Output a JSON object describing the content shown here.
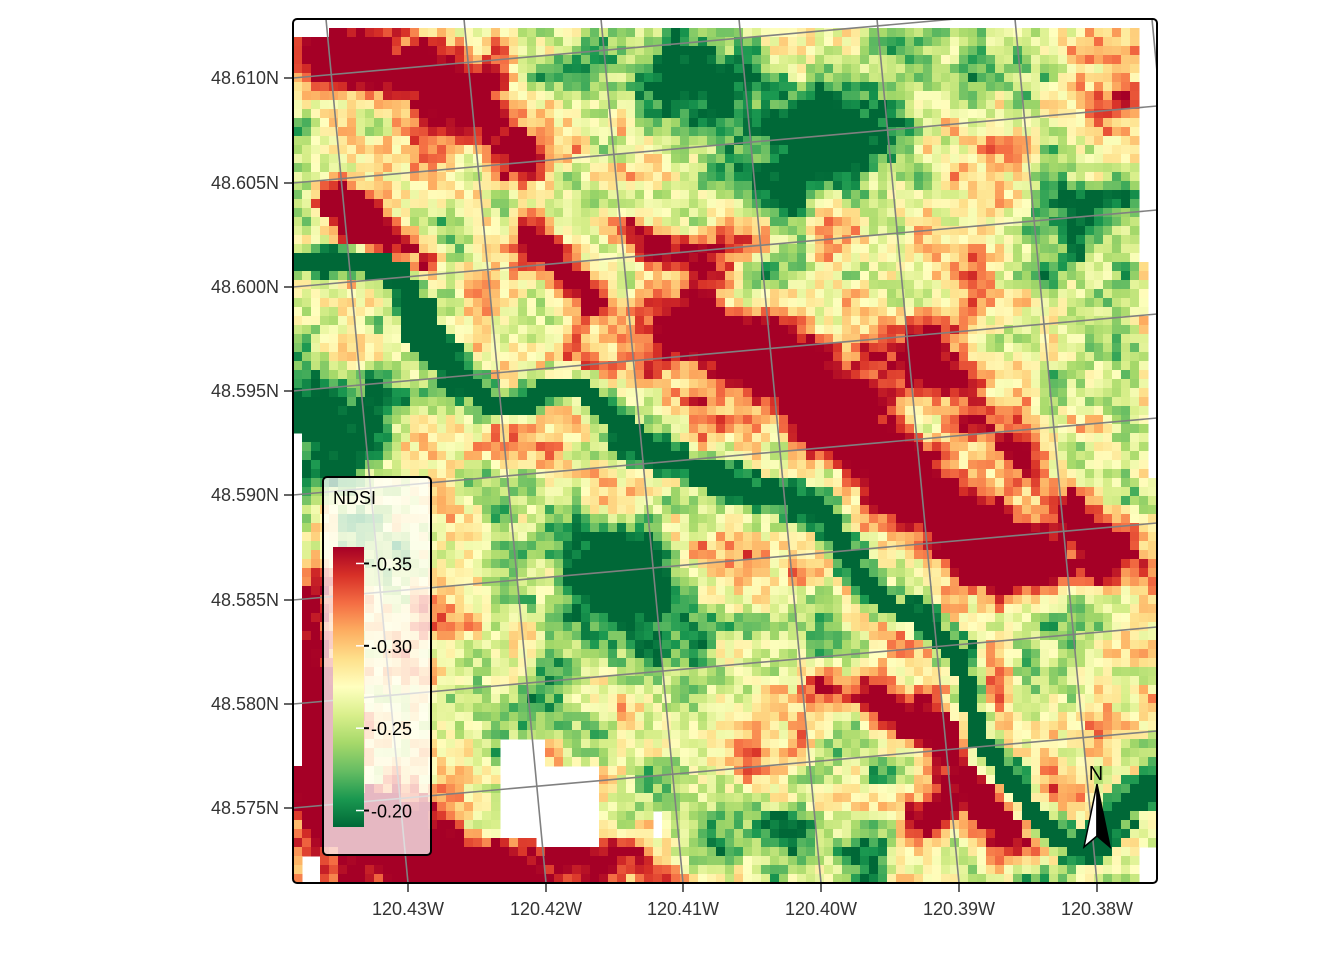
{
  "map": {
    "type": "raster",
    "layer": "NDSI",
    "palette": "RdYlGn",
    "grid": true,
    "graticule_color": "#808080",
    "latitude_labels": [
      "48.610N",
      "48.605N",
      "48.600N",
      "48.595N",
      "48.590N",
      "48.585N",
      "48.580N",
      "48.575N"
    ],
    "longitude_labels": [
      "120.43W",
      "120.42W",
      "120.41W",
      "120.40W",
      "120.39W",
      "120.38W"
    ]
  },
  "legend": {
    "title": "NDSI",
    "placement": "bottom-left",
    "range": [
      -0.19,
      -0.36
    ],
    "labels": [
      "-0.35",
      "-0.30",
      "-0.25",
      "-0.20"
    ],
    "label_values": [
      -0.35,
      -0.3,
      -0.25,
      -0.2
    ],
    "colors": [
      "#006837",
      "#1a9850",
      "#66bd63",
      "#a6d96a",
      "#d9ef8b",
      "#ffffbf",
      "#fee08b",
      "#fdae61",
      "#f46d43",
      "#d73027",
      "#a50026"
    ]
  },
  "north_arrow": {
    "label": "N",
    "placement": "bottom-right"
  }
}
